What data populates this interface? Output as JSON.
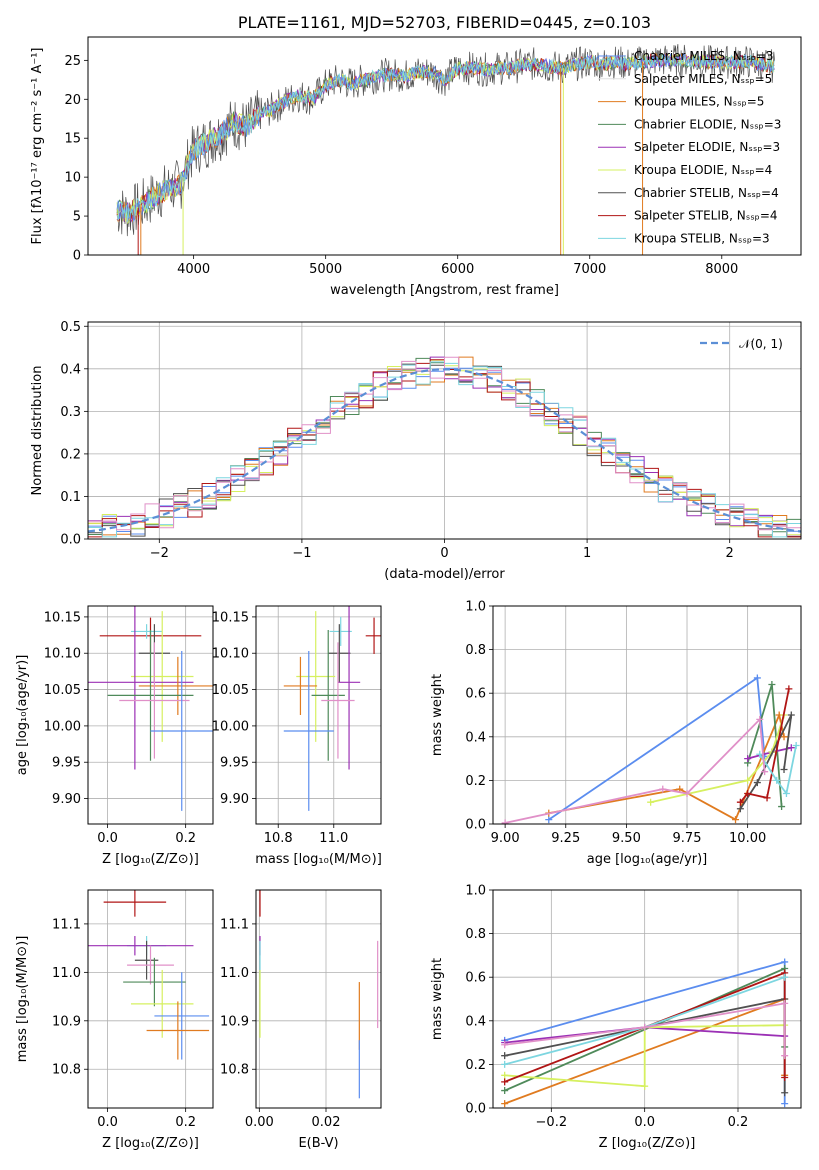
{
  "colors": {
    "chabrier_miles": "#5b8def",
    "salpeter_miles": "#e0e0e0",
    "kroupa_miles": "#e07b20",
    "chabrier_elodie": "#4f8a5a",
    "salpeter_elodie": "#9b30b5",
    "kroupa_elodie": "#d6f060",
    "chabrier_stelib": "#505050",
    "salpeter_stelib": "#b01515",
    "kroupa_stelib": "#7dd6e0",
    "pink": "#e090c8",
    "normal": "#5b8fd6"
  },
  "chart_data": [
    {
      "id": "spectrum",
      "type": "line",
      "title": "PLATE=1161, MJD=52703, FIBERID=0445, z=0.103",
      "xlabel": "wavelength [Angstrom, rest frame]",
      "ylabel": "Flux [fλ10⁻¹⁷ erg cm⁻² s⁻¹ A⁻¹]",
      "xlim": [
        3200,
        8600
      ],
      "ylim": [
        0,
        28
      ],
      "xticks": [
        "4000",
        "5000",
        "6000",
        "7000",
        "8000"
      ],
      "yticks": [
        "0",
        "5",
        "10",
        "15",
        "20",
        "25"
      ],
      "legend": {
        "placement": "right",
        "entries": [
          {
            "label": "Chabrier MILES, Nₛₛₚ=3",
            "color_key": "chabrier_miles"
          },
          {
            "label": "Salpeter MILES, Nₛₛₚ=5",
            "color_key": "salpeter_miles"
          },
          {
            "label": "Kroupa MILES, Nₛₛₚ=5",
            "color_key": "kroupa_miles"
          },
          {
            "label": "Chabrier ELODIE, Nₛₛₚ=3",
            "color_key": "chabrier_elodie"
          },
          {
            "label": "Salpeter ELODIE, Nₛₛₚ=3",
            "color_key": "salpeter_elodie"
          },
          {
            "label": "Kroupa ELODIE, Nₛₛₚ=4",
            "color_key": "kroupa_elodie"
          },
          {
            "label": "Chabrier STELIB, Nₛₛₚ=4",
            "color_key": "chabrier_stelib"
          },
          {
            "label": "Salpeter STELIB, Nₛₛₚ=4",
            "color_key": "salpeter_stelib"
          },
          {
            "label": "Kroupa STELIB, Nₛₛₚ=3",
            "color_key": "kroupa_stelib"
          }
        ]
      },
      "observed_continuum": {
        "x": [
          3420,
          3500,
          3600,
          3700,
          3800,
          3900,
          3950,
          4000,
          4100,
          4200,
          4300,
          4400,
          4500,
          4600,
          4700,
          4800,
          4900,
          5000,
          5100,
          5200,
          5300,
          5400,
          5500,
          5600,
          5700,
          5800,
          5900,
          6000,
          6100,
          6200,
          6300,
          6400,
          6500,
          6600,
          6700,
          6800,
          6900,
          7000,
          7100,
          7200,
          7300,
          7400,
          7500,
          7600,
          7700,
          7800,
          7900,
          8000,
          8100,
          8200,
          8300,
          8400
        ],
        "y": [
          5.8,
          5.4,
          6.2,
          7.5,
          8.5,
          9.0,
          11.5,
          13.5,
          14.5,
          15.5,
          17.0,
          16.5,
          18.0,
          18.8,
          19.8,
          20.5,
          20.0,
          21.8,
          22.5,
          22.0,
          22.5,
          23.0,
          23.2,
          23.0,
          23.5,
          23.5,
          22.5,
          24.0,
          24.0,
          23.8,
          24.0,
          24.0,
          24.5,
          24.5,
          24.2,
          24.0,
          24.5,
          24.8,
          24.5,
          24.8,
          24.5,
          24.8,
          25.0,
          25.0,
          25.0,
          25.0,
          24.8,
          24.8,
          24.8,
          24.8,
          24.5,
          24.2
        ]
      },
      "dropouts": [
        {
          "x": 3580,
          "color_key": "salpeter_stelib"
        },
        {
          "x": 3600,
          "color_key": "kroupa_miles"
        },
        {
          "x": 3920,
          "color_key": "kroupa_elodie"
        },
        {
          "x": 6780,
          "color_key": "kroupa_miles"
        },
        {
          "x": 6800,
          "color_key": "kroupa_elodie"
        },
        {
          "x": 7400,
          "color_key": "kroupa_miles"
        }
      ]
    },
    {
      "id": "residuals",
      "type": "bar",
      "xlabel": "(data-model)/error",
      "ylabel": "Normed distribution",
      "xlim": [
        -2.5,
        2.5
      ],
      "ylim": [
        0,
        0.51
      ],
      "xticks": [
        "−2",
        "−1",
        "0",
        "1",
        "2"
      ],
      "yticks": [
        "0.0",
        "0.1",
        "0.2",
        "0.3",
        "0.4",
        "0.5"
      ],
      "legend": {
        "placement": "top-right",
        "entries": [
          {
            "label": "𝒩(0, 1)",
            "color_key": "normal"
          }
        ]
      },
      "bin_width": 0.1,
      "bin_start": -2.5,
      "series_color_keys": [
        "chabrier_miles",
        "kroupa_miles",
        "chabrier_elodie",
        "salpeter_elodie",
        "kroupa_elodie",
        "chabrier_stelib",
        "salpeter_stelib",
        "kroupa_stelib",
        "pink"
      ]
    },
    {
      "id": "age_vs_z",
      "type": "scatter",
      "xlabel": "Z [log₁₀(Z/Z⊙)]",
      "ylabel": "age  [log₁₀(age/yr)]",
      "xlim": [
        -0.05,
        0.27
      ],
      "ylim": [
        9.865,
        10.165
      ],
      "xticks": [
        "0.0",
        "0.2"
      ],
      "yticks": [
        "9.90",
        "9.95",
        "10.00",
        "10.05",
        "10.10",
        "10.15"
      ],
      "points": [
        {
          "x": 0.11,
          "xerr": 0.13,
          "y": 10.124,
          "yerr": 0.025,
          "color_key": "salpeter_stelib"
        },
        {
          "x": 0.1,
          "xerr": 0.04,
          "y": 10.13,
          "yerr": 0.01,
          "color_key": "kroupa_stelib"
        },
        {
          "x": 0.12,
          "xerr": 0.04,
          "y": 10.1,
          "yerr": 0.04,
          "color_key": "chabrier_stelib"
        },
        {
          "x": 0.14,
          "xerr": 0.08,
          "y": 10.068,
          "yerr": 0.09,
          "color_key": "kroupa_elodie"
        },
        {
          "x": 0.07,
          "xerr": 0.15,
          "y": 10.06,
          "yerr": 0.12,
          "color_key": "salpeter_elodie"
        },
        {
          "x": 0.18,
          "xerr": 0.1,
          "y": 10.055,
          "yerr": 0.04,
          "color_key": "kroupa_miles"
        },
        {
          "x": 0.11,
          "xerr": 0.11,
          "y": 10.042,
          "yerr": 0.09,
          "color_key": "chabrier_elodie"
        },
        {
          "x": 0.12,
          "xerr": 0.09,
          "y": 10.035,
          "yerr": 0.08,
          "color_key": "pink"
        },
        {
          "x": 0.19,
          "xerr": 0.08,
          "y": 9.993,
          "yerr": 0.11,
          "color_key": "chabrier_miles"
        }
      ]
    },
    {
      "id": "age_vs_mass",
      "type": "scatter",
      "xlabel": "mass [log₁₀(M/M⊙)]",
      "ylabel": "",
      "xlim": [
        10.72,
        11.17
      ],
      "ylim": [
        9.865,
        10.165
      ],
      "xticks": [
        "10.8",
        "11.0"
      ],
      "yticks": [
        "9.90",
        "9.95",
        "10.00",
        "10.05",
        "10.10",
        "10.15"
      ],
      "points": [
        {
          "x": 11.145,
          "xerr": 0.03,
          "y": 10.124,
          "yerr": 0.025,
          "color_key": "salpeter_stelib"
        },
        {
          "x": 11.025,
          "xerr": 0.04,
          "y": 10.13,
          "yerr": 0.02,
          "color_key": "kroupa_stelib"
        },
        {
          "x": 11.02,
          "xerr": 0.04,
          "y": 10.1,
          "yerr": 0.04,
          "color_key": "chabrier_stelib"
        },
        {
          "x": 10.935,
          "xerr": 0.07,
          "y": 10.068,
          "yerr": 0.09,
          "color_key": "kroupa_elodie"
        },
        {
          "x": 11.055,
          "xerr": 0.04,
          "y": 10.06,
          "yerr": 0.12,
          "color_key": "salpeter_elodie"
        },
        {
          "x": 10.88,
          "xerr": 0.06,
          "y": 10.055,
          "yerr": 0.04,
          "color_key": "kroupa_miles"
        },
        {
          "x": 10.98,
          "xerr": 0.06,
          "y": 10.042,
          "yerr": 0.09,
          "color_key": "chabrier_elodie"
        },
        {
          "x": 11.015,
          "xerr": 0.06,
          "y": 10.035,
          "yerr": 0.08,
          "color_key": "pink"
        },
        {
          "x": 10.91,
          "xerr": 0.09,
          "y": 9.993,
          "yerr": 0.11,
          "color_key": "chabrier_miles"
        }
      ]
    },
    {
      "id": "weight_vs_age",
      "type": "line",
      "xlabel": "age  [log₁₀(age/yr)]",
      "ylabel": "mass weight",
      "xlim": [
        8.95,
        10.22
      ],
      "ylim": [
        0,
        1.0
      ],
      "xticks": [
        "9.00",
        "9.25",
        "9.50",
        "9.75",
        "10.00"
      ],
      "yticks": [
        "0.0",
        "0.2",
        "0.4",
        "0.6",
        "0.8",
        "1.0"
      ],
      "series": [
        {
          "color_key": "chabrier_miles",
          "x": [
            9.18,
            10.04,
            10.07
          ],
          "y": [
            0.02,
            0.67,
            0.31
          ]
        },
        {
          "color_key": "kroupa_miles",
          "x": [
            9.18,
            9.72,
            9.95,
            10.13,
            10.15
          ],
          "y": [
            0.05,
            0.16,
            0.02,
            0.5,
            0.4
          ]
        },
        {
          "color_key": "chabrier_elodie",
          "x": [
            10.0,
            10.1,
            10.14
          ],
          "y": [
            0.28,
            0.64,
            0.08
          ]
        },
        {
          "color_key": "salpeter_elodie",
          "x": [
            10.0,
            10.1,
            10.18
          ],
          "y": [
            0.3,
            0.33,
            0.35
          ]
        },
        {
          "color_key": "kroupa_elodie",
          "x": [
            9.6,
            10.0,
            10.1,
            10.15
          ],
          "y": [
            0.1,
            0.2,
            0.33,
            0.5
          ]
        },
        {
          "color_key": "chabrier_stelib",
          "x": [
            9.97,
            10.04,
            10.18,
            10.15
          ],
          "y": [
            0.07,
            0.19,
            0.5,
            0.25
          ]
        },
        {
          "color_key": "salpeter_stelib",
          "x": [
            9.97,
            10.0,
            10.08,
            10.17
          ],
          "y": [
            0.1,
            0.14,
            0.12,
            0.62
          ]
        },
        {
          "color_key": "kroupa_stelib",
          "x": [
            10.05,
            10.12,
            10.16,
            10.2
          ],
          "y": [
            0.32,
            0.2,
            0.14,
            0.36
          ]
        },
        {
          "color_key": "pink",
          "x": [
            9.0,
            9.65,
            9.75,
            10.05,
            10.07
          ],
          "y": [
            0.005,
            0.16,
            0.14,
            0.48,
            0.24
          ]
        }
      ]
    },
    {
      "id": "mass_vs_z",
      "type": "scatter",
      "xlabel": "Z [log₁₀(Z/Z⊙)]",
      "ylabel": "mass [log₁₀(M/M⊙)]",
      "xlim": [
        -0.05,
        0.27
      ],
      "ylim": [
        10.72,
        11.17
      ],
      "xticks": [
        "0.0",
        "0.2"
      ],
      "yticks": [
        "10.8",
        "10.9",
        "11.0",
        "11.1"
      ],
      "points": [
        {
          "x": 0.07,
          "xerr": 0.08,
          "y": 11.145,
          "yerr": 0.03,
          "color_key": "salpeter_stelib"
        },
        {
          "x": 0.1,
          "xerr": 0.05,
          "y": 11.055,
          "yerr": 0.02,
          "color_key": "kroupa_stelib"
        },
        {
          "x": 0.07,
          "xerr": 0.15,
          "y": 11.055,
          "yerr": 0.02,
          "color_key": "salpeter_elodie"
        },
        {
          "x": 0.1,
          "xerr": 0.03,
          "y": 11.025,
          "yerr": 0.04,
          "color_key": "chabrier_stelib"
        },
        {
          "x": 0.11,
          "xerr": 0.06,
          "y": 11.015,
          "yerr": 0.04,
          "color_key": "pink"
        },
        {
          "x": 0.12,
          "xerr": 0.08,
          "y": 10.98,
          "yerr": 0.05,
          "color_key": "chabrier_elodie"
        },
        {
          "x": 0.14,
          "xerr": 0.08,
          "y": 10.935,
          "yerr": 0.07,
          "color_key": "kroupa_elodie"
        },
        {
          "x": 0.19,
          "xerr": 0.07,
          "y": 10.91,
          "yerr": 0.09,
          "color_key": "chabrier_miles"
        },
        {
          "x": 0.18,
          "xerr": 0.08,
          "y": 10.88,
          "yerr": 0.06,
          "color_key": "kroupa_miles"
        }
      ]
    },
    {
      "id": "mass_vs_ebv",
      "type": "scatter",
      "xlabel": "E(B-V)",
      "ylabel": "",
      "xlim": [
        -0.001,
        0.0365
      ],
      "ylim": [
        10.72,
        11.17
      ],
      "xticks": [
        "0.00",
        "0.02"
      ],
      "yticks": [
        "10.8",
        "10.9",
        "11.0",
        "11.1"
      ],
      "points": [
        {
          "x": 0.0002,
          "xerr": 0,
          "y": 11.145,
          "yerr": 0.03,
          "color_key": "salpeter_stelib"
        },
        {
          "x": 0.0002,
          "xerr": 0,
          "y": 11.055,
          "yerr": 0.02,
          "color_key": "salpeter_elodie"
        },
        {
          "x": 0.0002,
          "xerr": 0,
          "y": 11.025,
          "yerr": 0.04,
          "color_key": "kroupa_stelib"
        },
        {
          "x": 0.0002,
          "xerr": 0,
          "y": 10.935,
          "yerr": 0.07,
          "color_key": "kroupa_elodie"
        },
        {
          "x": 0.03,
          "xerr": 0,
          "y": 10.91,
          "yerr": 0.07,
          "color_key": "kroupa_miles"
        },
        {
          "x": 0.03,
          "xerr": 0,
          "y": 10.8,
          "yerr": 0.06,
          "color_key": "chabrier_miles"
        },
        {
          "x": 0.0355,
          "xerr": 0,
          "y": 10.975,
          "yerr": 0.09,
          "color_key": "pink"
        }
      ]
    },
    {
      "id": "weight_vs_z",
      "type": "line",
      "xlabel": "Z [log₁₀(Z/Z⊙)]",
      "ylabel": "mass weight",
      "xlim": [
        -0.325,
        0.335
      ],
      "ylim": [
        0,
        1.0
      ],
      "xticks": [
        "−0.2",
        "0.0",
        "0.2"
      ],
      "yticks": [
        "0.0",
        "0.2",
        "0.4",
        "0.6",
        "0.8",
        "1.0"
      ],
      "series": [
        {
          "color_key": "chabrier_miles",
          "x": [
            -0.3,
            0.3,
            0.3
          ],
          "y": [
            0.31,
            0.67,
            0.02
          ]
        },
        {
          "color_key": "kroupa_miles",
          "x": [
            -0.3,
            0.3,
            0.3
          ],
          "y": [
            0.02,
            0.5,
            0.15
          ]
        },
        {
          "color_key": "chabrier_elodie",
          "x": [
            -0.3,
            0.3,
            0.3
          ],
          "y": [
            0.08,
            0.64,
            0.28
          ]
        },
        {
          "color_key": "salpeter_elodie",
          "x": [
            -0.3,
            0.0,
            0.3
          ],
          "y": [
            0.3,
            0.37,
            0.33
          ]
        },
        {
          "color_key": "kroupa_elodie",
          "x": [
            -0.3,
            0.0,
            0.0,
            0.3
          ],
          "y": [
            0.15,
            0.1,
            0.37,
            0.38
          ]
        },
        {
          "color_key": "chabrier_stelib",
          "x": [
            -0.3,
            0.3,
            0.3
          ],
          "y": [
            0.24,
            0.5,
            0.07
          ]
        },
        {
          "color_key": "salpeter_stelib",
          "x": [
            -0.3,
            0.3,
            0.3
          ],
          "y": [
            0.12,
            0.62,
            0.14
          ]
        },
        {
          "color_key": "kroupa_stelib",
          "x": [
            -0.3,
            0.0,
            0.3
          ],
          "y": [
            0.2,
            0.37,
            0.6
          ]
        },
        {
          "color_key": "pink",
          "x": [
            -0.3,
            0.0,
            0.3,
            0.3
          ],
          "y": [
            0.29,
            0.37,
            0.48,
            0.24
          ]
        }
      ]
    }
  ]
}
